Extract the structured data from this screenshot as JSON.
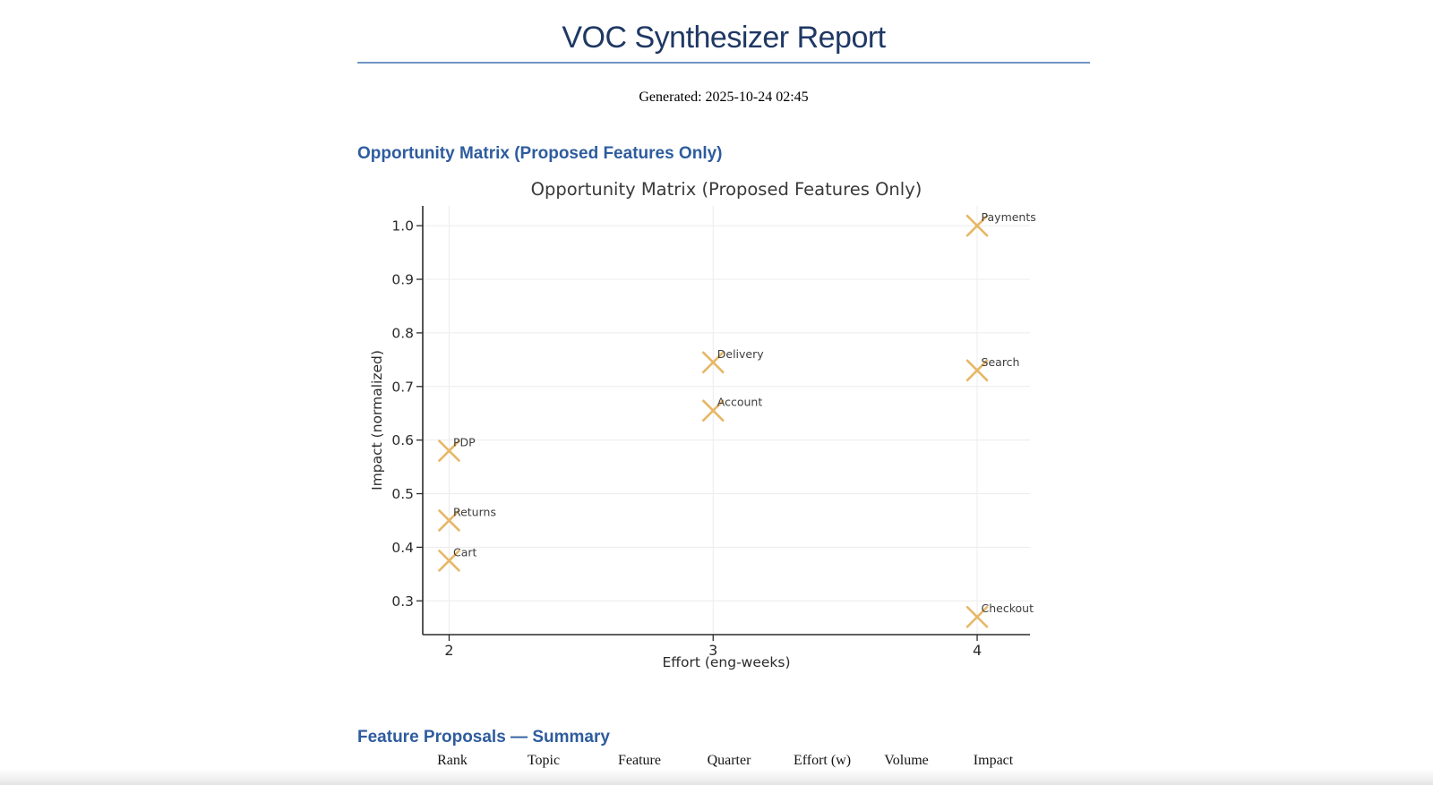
{
  "report": {
    "title": "VOC Synthesizer Report",
    "generated_line": "Generated: 2025-10-24 02:45"
  },
  "sections": [
    {
      "heading": "Opportunity Matrix (Proposed Features Only)"
    },
    {
      "heading": "Feature Proposals — Summary"
    }
  ],
  "proposals_table": {
    "columns": [
      "Rank",
      "Topic",
      "Feature",
      "Quarter",
      "Effort (w)",
      "Volume",
      "Impact"
    ]
  },
  "chart_data": {
    "type": "scatter",
    "title": "Opportunity Matrix (Proposed Features Only)",
    "xlabel": "Effort (eng-weeks)",
    "ylabel": "Impact (normalized)",
    "xlim": [
      1.9,
      4.2
    ],
    "ylim": [
      0.237,
      1.037
    ],
    "xticks": [
      2,
      3,
      4
    ],
    "yticks": [
      0.3,
      0.4,
      0.5,
      0.6,
      0.7,
      0.8,
      0.9,
      1.0
    ],
    "grid": true,
    "legend": false,
    "marker": "x",
    "marker_color": "#e7b766",
    "points": [
      {
        "label": "Payments",
        "x": 4,
        "y": 1.0
      },
      {
        "label": "Delivery",
        "x": 3,
        "y": 0.745
      },
      {
        "label": "Search",
        "x": 4,
        "y": 0.73
      },
      {
        "label": "Account",
        "x": 3,
        "y": 0.655
      },
      {
        "label": "PDP",
        "x": 2,
        "y": 0.58
      },
      {
        "label": "Returns",
        "x": 2,
        "y": 0.45
      },
      {
        "label": "Cart",
        "x": 2,
        "y": 0.375
      },
      {
        "label": "Checkout",
        "x": 4,
        "y": 0.27
      }
    ]
  },
  "colors": {
    "title_text": "#1f3864",
    "heading_text": "#2e5c9e",
    "title_rule": "#7096c4",
    "marker": "#e7b766",
    "chart_text": "#2b2b2b",
    "point_label_text": "#3d3d3d",
    "gridline": "#ececec",
    "spine": "#2b2b2b"
  }
}
